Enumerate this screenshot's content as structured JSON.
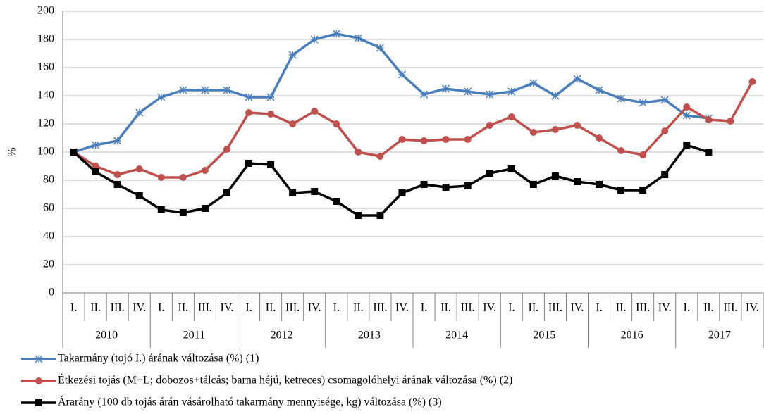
{
  "chart_data": {
    "type": "line",
    "y_label": "%",
    "categories": [
      "I.",
      "II.",
      "III.",
      "IV.",
      "I.",
      "II.",
      "III.",
      "IV.",
      "I.",
      "II.",
      "III.",
      "IV.",
      "I.",
      "II.",
      "III.",
      "IV.",
      "I.",
      "II.",
      "III.",
      "IV.",
      "I.",
      "II.",
      "III.",
      "IV.",
      "I.",
      "II.",
      "III.",
      "IV.",
      "I.",
      "II.",
      "III.",
      "IV."
    ],
    "years": [
      "2010",
      "2011",
      "2012",
      "2013",
      "2014",
      "2015",
      "2016",
      "2017"
    ],
    "ylim": [
      0,
      200
    ],
    "yticks": [
      0,
      20,
      40,
      60,
      80,
      100,
      120,
      140,
      160,
      180,
      200
    ],
    "grid": true,
    "series": [
      {
        "name": "Takarmány (tojó I.) árának változása (%) (1)",
        "color": "#4a7ebb",
        "marker": "star",
        "values": [
          100,
          105,
          108,
          128,
          139,
          144,
          144,
          144,
          139,
          139,
          169,
          180,
          184,
          181,
          174,
          155,
          141,
          145,
          143,
          141,
          143,
          149,
          140,
          152,
          144,
          138,
          135,
          137,
          126,
          124,
          null,
          null
        ]
      },
      {
        "name": "Étkezési tojás (M+L; dobozos+tálcás; barna héjú, ketreces) csomagolóhelyi árának változása (%) (2)",
        "color": "#c0504d",
        "marker": "circle",
        "values": [
          100,
          90,
          84,
          88,
          82,
          82,
          87,
          102,
          128,
          127,
          120,
          129,
          120,
          100,
          97,
          109,
          108,
          109,
          109,
          119,
          125,
          114,
          116,
          119,
          110,
          101,
          98,
          115,
          132,
          123,
          122,
          150
        ]
      },
      {
        "name": "Árarány (100 db tojás árán vásárolható takarmány mennyisége, kg) változása (%) (3)",
        "color": "#000000",
        "marker": "square",
        "values": [
          100,
          86,
          77,
          69,
          59,
          57,
          60,
          71,
          92,
          91,
          71,
          72,
          65,
          55,
          55,
          71,
          77,
          75,
          76,
          85,
          88,
          77,
          83,
          79,
          77,
          73,
          73,
          84,
          105,
          100,
          null,
          null
        ]
      }
    ]
  }
}
